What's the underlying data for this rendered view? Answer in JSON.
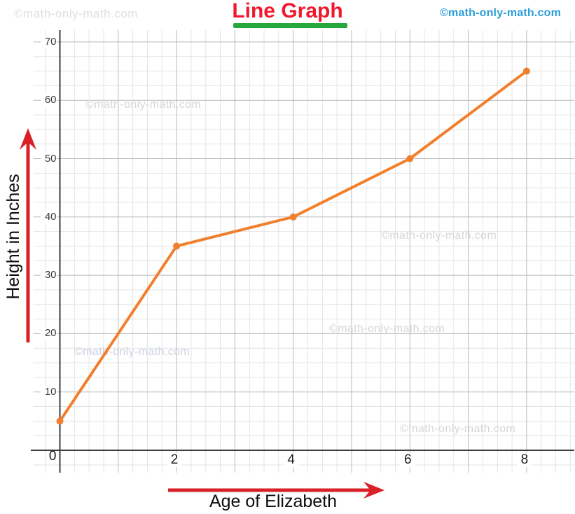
{
  "header": {
    "watermark_left": "©math-only-math.com",
    "watermark_right": "©math-only-math.com",
    "title_color": "#f1182d",
    "underline_color": "#27a83c"
  },
  "watermarks": {
    "text": "©math-only-math.com"
  },
  "chart_data": {
    "type": "line",
    "title": "Line Graph",
    "xlabel": "Age of Elizabeth",
    "ylabel": "Height in Inches",
    "x": [
      0,
      2,
      4,
      6,
      8
    ],
    "y": [
      5,
      35,
      40,
      50,
      65
    ],
    "x_ticks": [
      "0",
      "2",
      "4",
      "6",
      "8"
    ],
    "y_ticks": [
      "10",
      "20",
      "30",
      "40",
      "50",
      "60",
      "70"
    ],
    "xlim": [
      0,
      8.8
    ],
    "ylim": [
      0,
      72
    ],
    "grid": true,
    "legend_position": "none",
    "line_color": "#f0802d",
    "point_color": "#f0802d",
    "axis_color": "#3d3d3d",
    "arrow_color": "#d92027"
  }
}
